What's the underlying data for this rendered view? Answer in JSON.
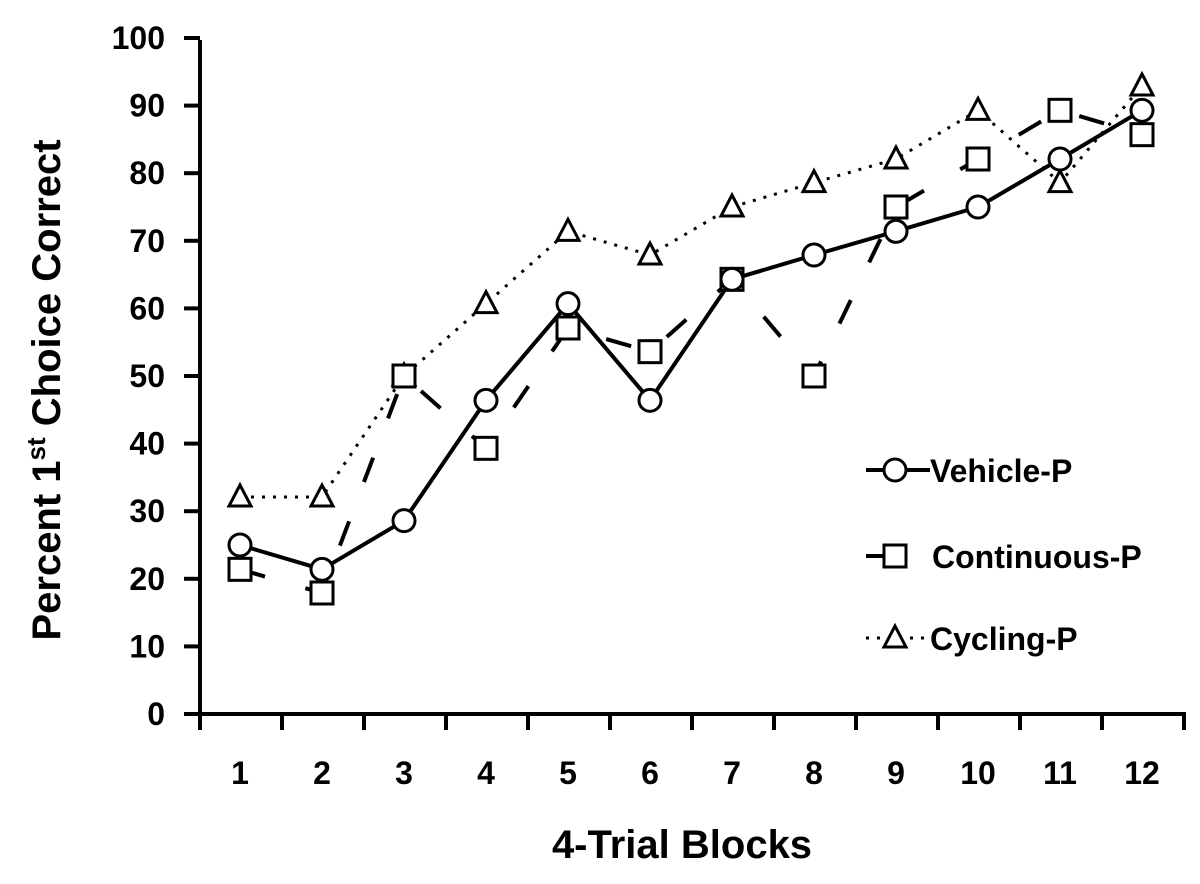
{
  "chart_data": {
    "type": "line",
    "title": "",
    "xlabel": "4-Trial Blocks",
    "ylabel_parts": [
      "Percent 1",
      "st",
      " Choice Correct"
    ],
    "categories": [
      "1",
      "2",
      "3",
      "4",
      "5",
      "6",
      "7",
      "8",
      "9",
      "10",
      "11",
      "12"
    ],
    "ylim": [
      0,
      100
    ],
    "yticks": [
      "0",
      "10",
      "20",
      "30",
      "40",
      "50",
      "60",
      "70",
      "80",
      "90",
      "100"
    ],
    "grid": false,
    "legend_position": "right-bottom",
    "series": [
      {
        "name": "Vehicle-P",
        "marker": "circle",
        "line": "solid",
        "values": [
          25,
          21.4,
          28.6,
          46.4,
          60.7,
          46.4,
          64.3,
          67.9,
          71.4,
          75,
          82.1,
          89.3
        ]
      },
      {
        "name": "Continuous-P",
        "marker": "square",
        "line": "dashed",
        "values": [
          21.4,
          17.9,
          50,
          39.3,
          57.1,
          53.6,
          64.3,
          50,
          75,
          82.1,
          89.3,
          85.7
        ]
      },
      {
        "name": "Cycling-P",
        "marker": "triangle",
        "line": "dotted",
        "values": [
          32.1,
          32.1,
          50,
          60.7,
          71.4,
          67.9,
          75,
          78.6,
          82.1,
          89.3,
          78.6,
          92.9
        ]
      }
    ]
  }
}
